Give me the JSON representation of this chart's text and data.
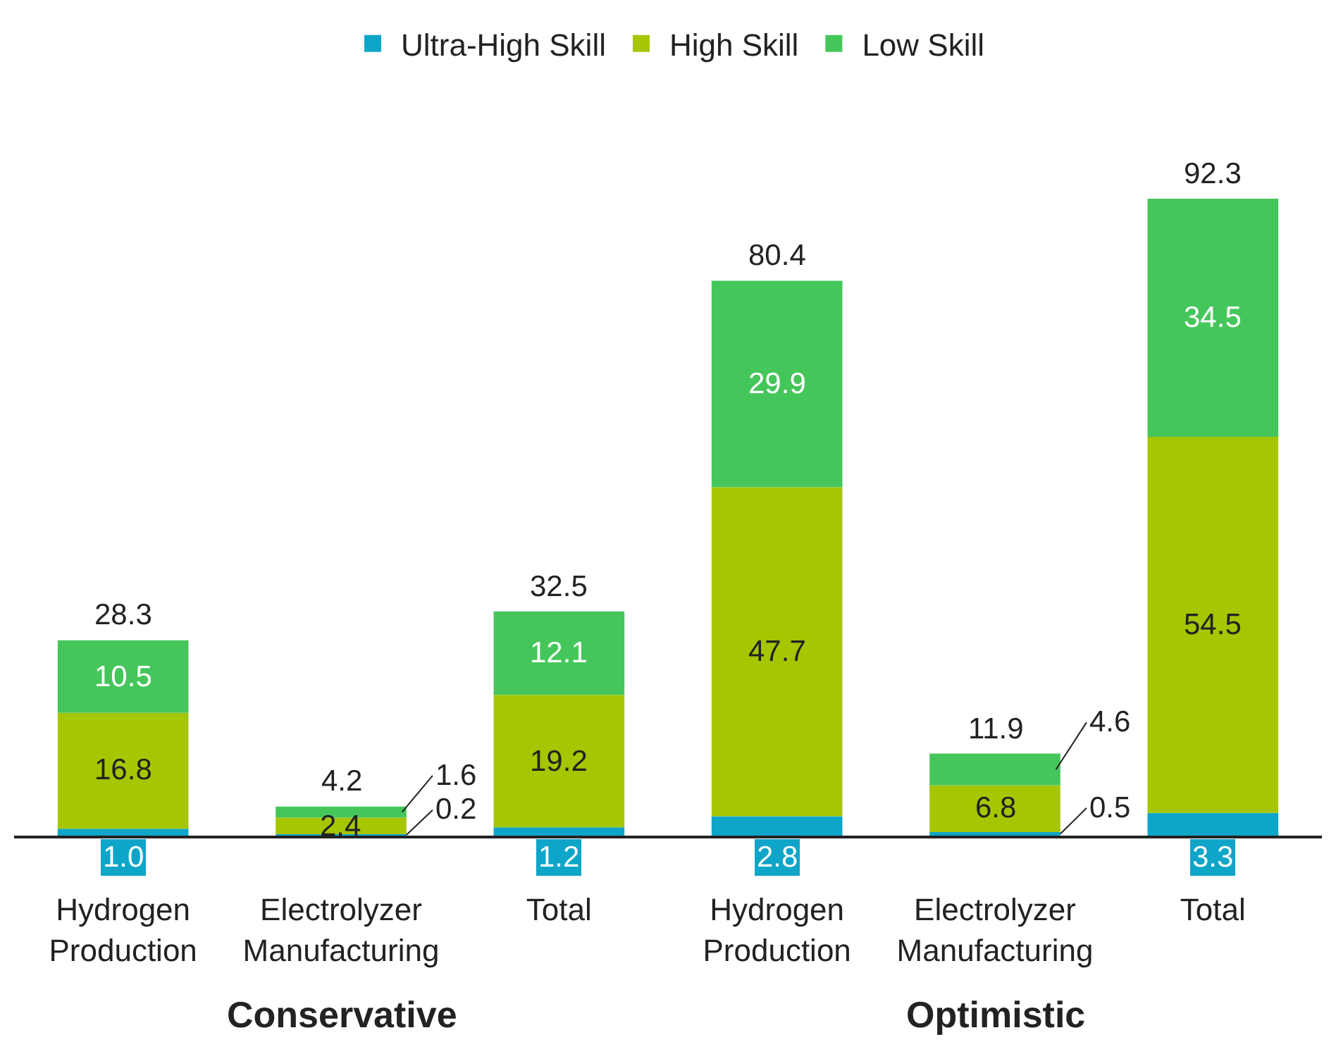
{
  "chart_data": {
    "type": "bar",
    "stacked": true,
    "categories": [
      "Hydrogen Production",
      "Electrolyzer Manufacturing",
      "Total",
      "Hydrogen Production",
      "Electrolyzer Manufacturing",
      "Total"
    ],
    "series": [
      {
        "name": "Ultra-High Skill",
        "color": "#0ea5c8",
        "values": [
          1.0,
          0.2,
          1.2,
          2.8,
          0.5,
          3.3
        ],
        "value_labels": [
          "1.0",
          "0.2",
          "1.2",
          "2.8",
          "0.5",
          "3.3"
        ]
      },
      {
        "name": "High Skill",
        "color": "#a5c600",
        "values": [
          16.8,
          2.4,
          19.2,
          47.7,
          6.8,
          54.5
        ],
        "value_labels": [
          "16.8",
          "2.4",
          "19.2",
          "47.7",
          "6.8",
          "54.5"
        ]
      },
      {
        "name": "Low Skill",
        "color": "#45c65a",
        "values": [
          10.5,
          1.6,
          12.1,
          29.9,
          4.6,
          34.5
        ],
        "value_labels": [
          "10.5",
          "1.6",
          "12.1",
          "29.9",
          "4.6",
          "34.5"
        ]
      }
    ],
    "totals": [
      "28.3",
      "4.2",
      "32.5",
      "80.4",
      "11.9",
      "92.3"
    ],
    "tick_labels": "x",
    "legend": "top",
    "annotations": [
      "Conservative",
      "Optimistic"
    ]
  }
}
